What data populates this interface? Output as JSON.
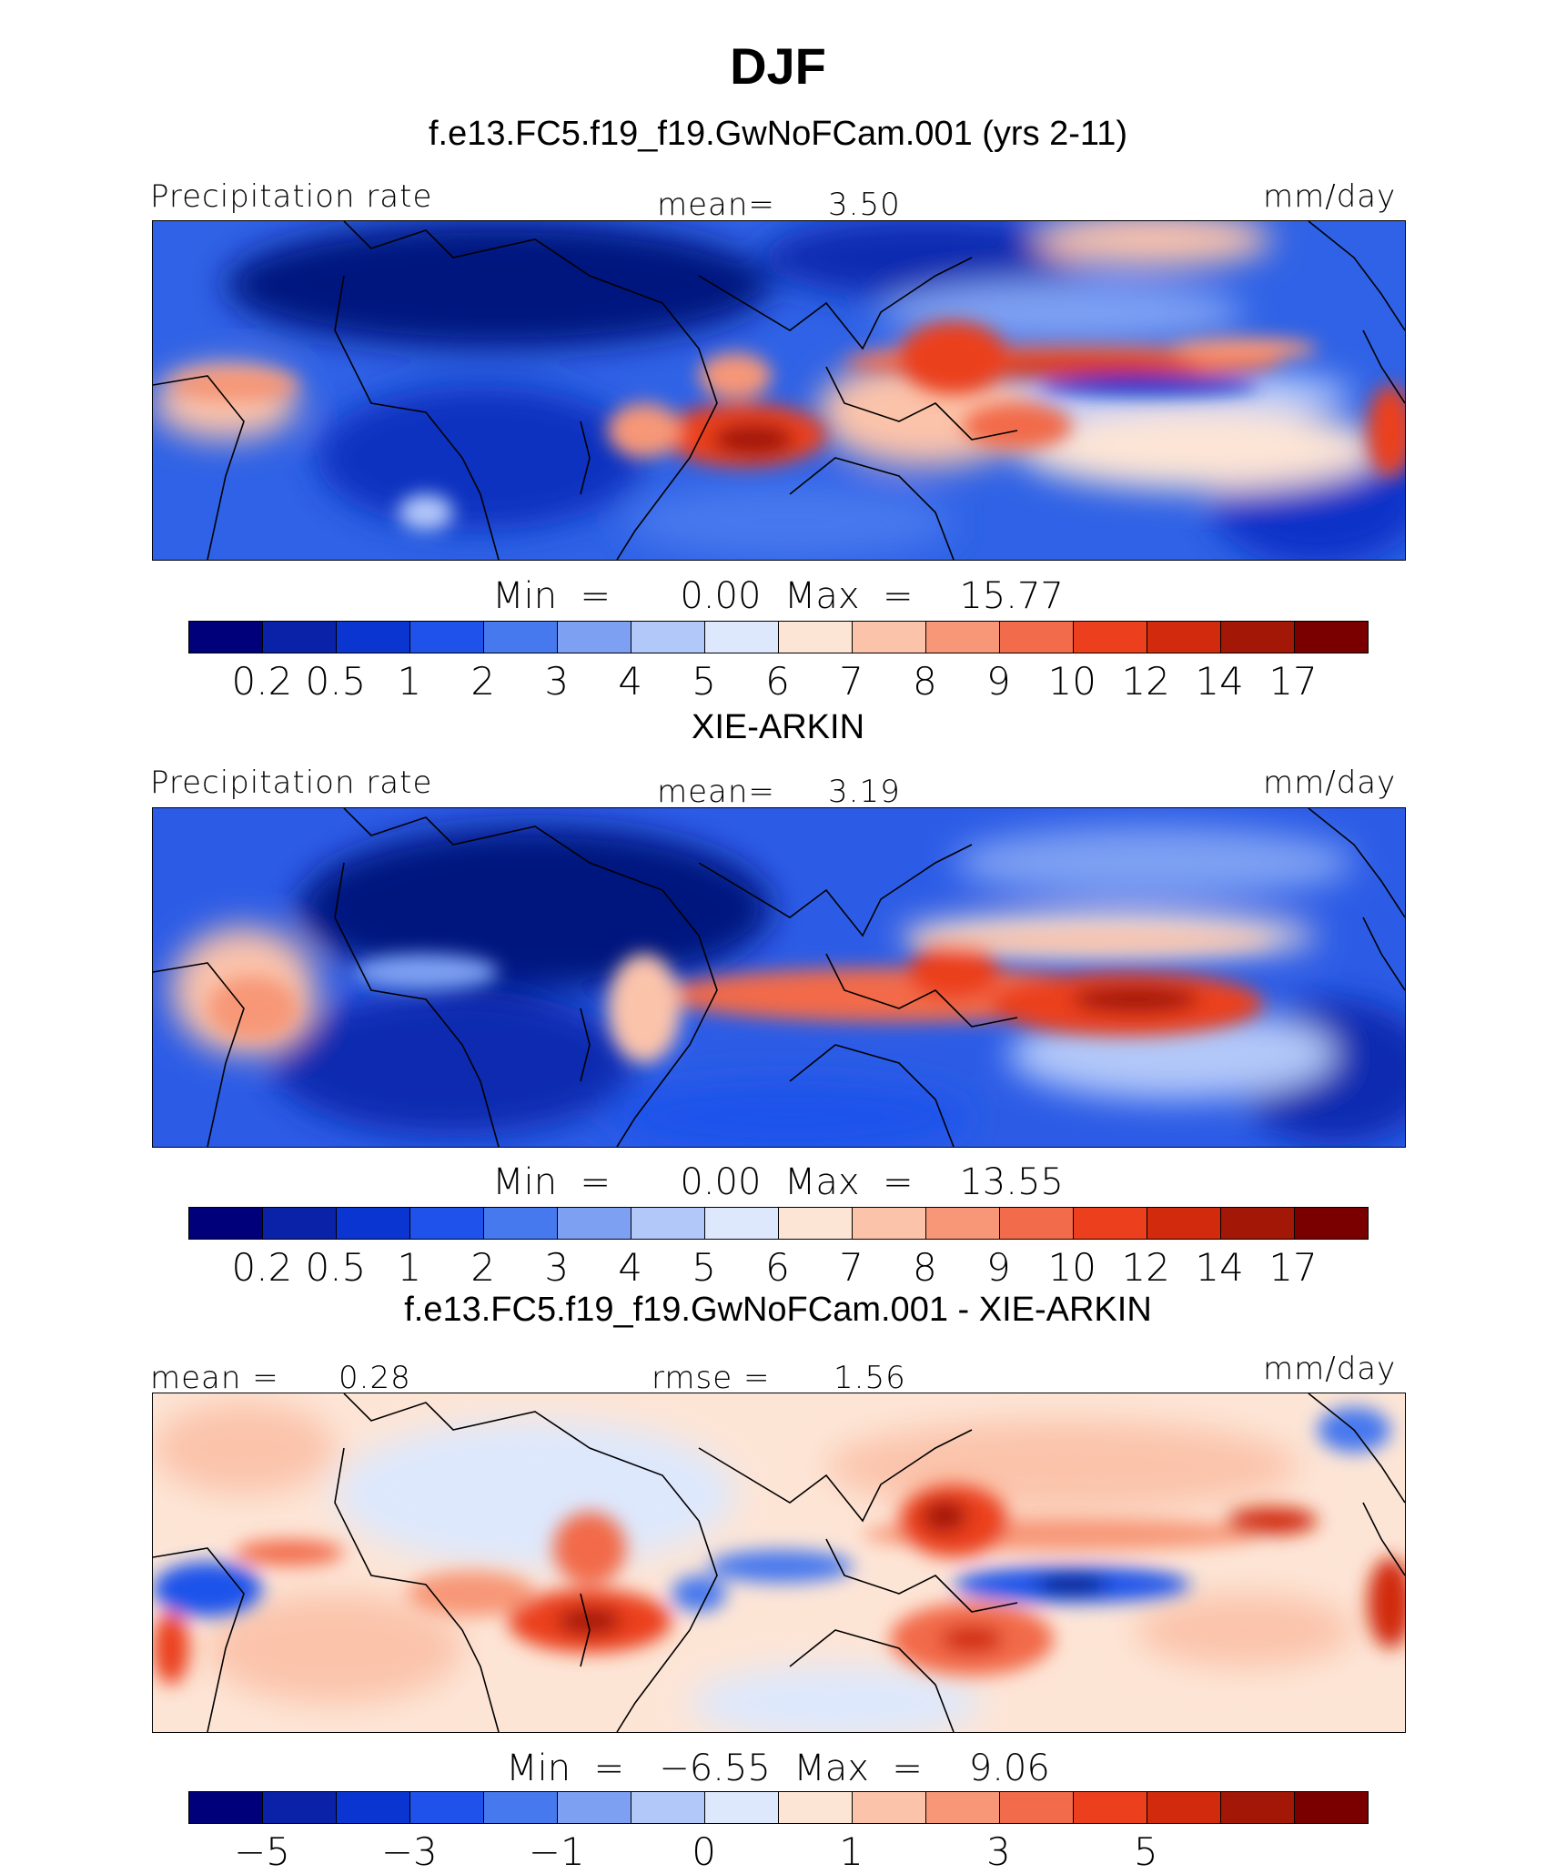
{
  "title": "DJF",
  "panels": [
    {
      "subtitle": "f.e13.FC5.f19_f19.GwNoFCam.001 (yrs 2-11)",
      "left_label": "Precipitation rate",
      "center_label": "mean=",
      "center_value": "3.50",
      "right_label": "mm/day",
      "min_label": "Min",
      "min_value": "0.00",
      "max_label": "Max",
      "max_value": "15.77",
      "ticks": [
        "0.2",
        "0.5",
        "1",
        "2",
        "3",
        "4",
        "5",
        "6",
        "7",
        "8",
        "9",
        "10",
        "12",
        "14",
        "17"
      ]
    },
    {
      "subtitle": "XIE-ARKIN",
      "left_label": "Precipitation rate",
      "center_label": "mean=",
      "center_value": "3.19",
      "right_label": "mm/day",
      "min_label": "Min",
      "min_value": "0.00",
      "max_label": "Max",
      "max_value": "13.55",
      "ticks": [
        "0.2",
        "0.5",
        "1",
        "2",
        "3",
        "4",
        "5",
        "6",
        "7",
        "8",
        "9",
        "10",
        "12",
        "14",
        "17"
      ]
    },
    {
      "subtitle": "f.e13.FC5.f19_f19.GwNoFCam.001 - XIE-ARKIN",
      "left_label": "mean =",
      "left_value": "0.28",
      "center_label": "rmse =",
      "center_value": "1.56",
      "right_label": "mm/day",
      "min_label": "Min",
      "min_value": "−6.55",
      "max_label": "Max",
      "max_value": "9.06",
      "ticks": [
        "−5",
        "−3",
        "−1",
        "0",
        "1",
        "3",
        "5"
      ]
    }
  ],
  "colors": [
    "#00007a",
    "#0a22a8",
    "#0a35d0",
    "#1e52eb",
    "#4678ee",
    "#7ea0f3",
    "#b2c8f9",
    "#dde8fd",
    "#fde5d6",
    "#fbc3aa",
    "#f79777",
    "#f26b4a",
    "#eb3f1e",
    "#d12a0c",
    "#a31707",
    "#7a0000"
  ]
}
